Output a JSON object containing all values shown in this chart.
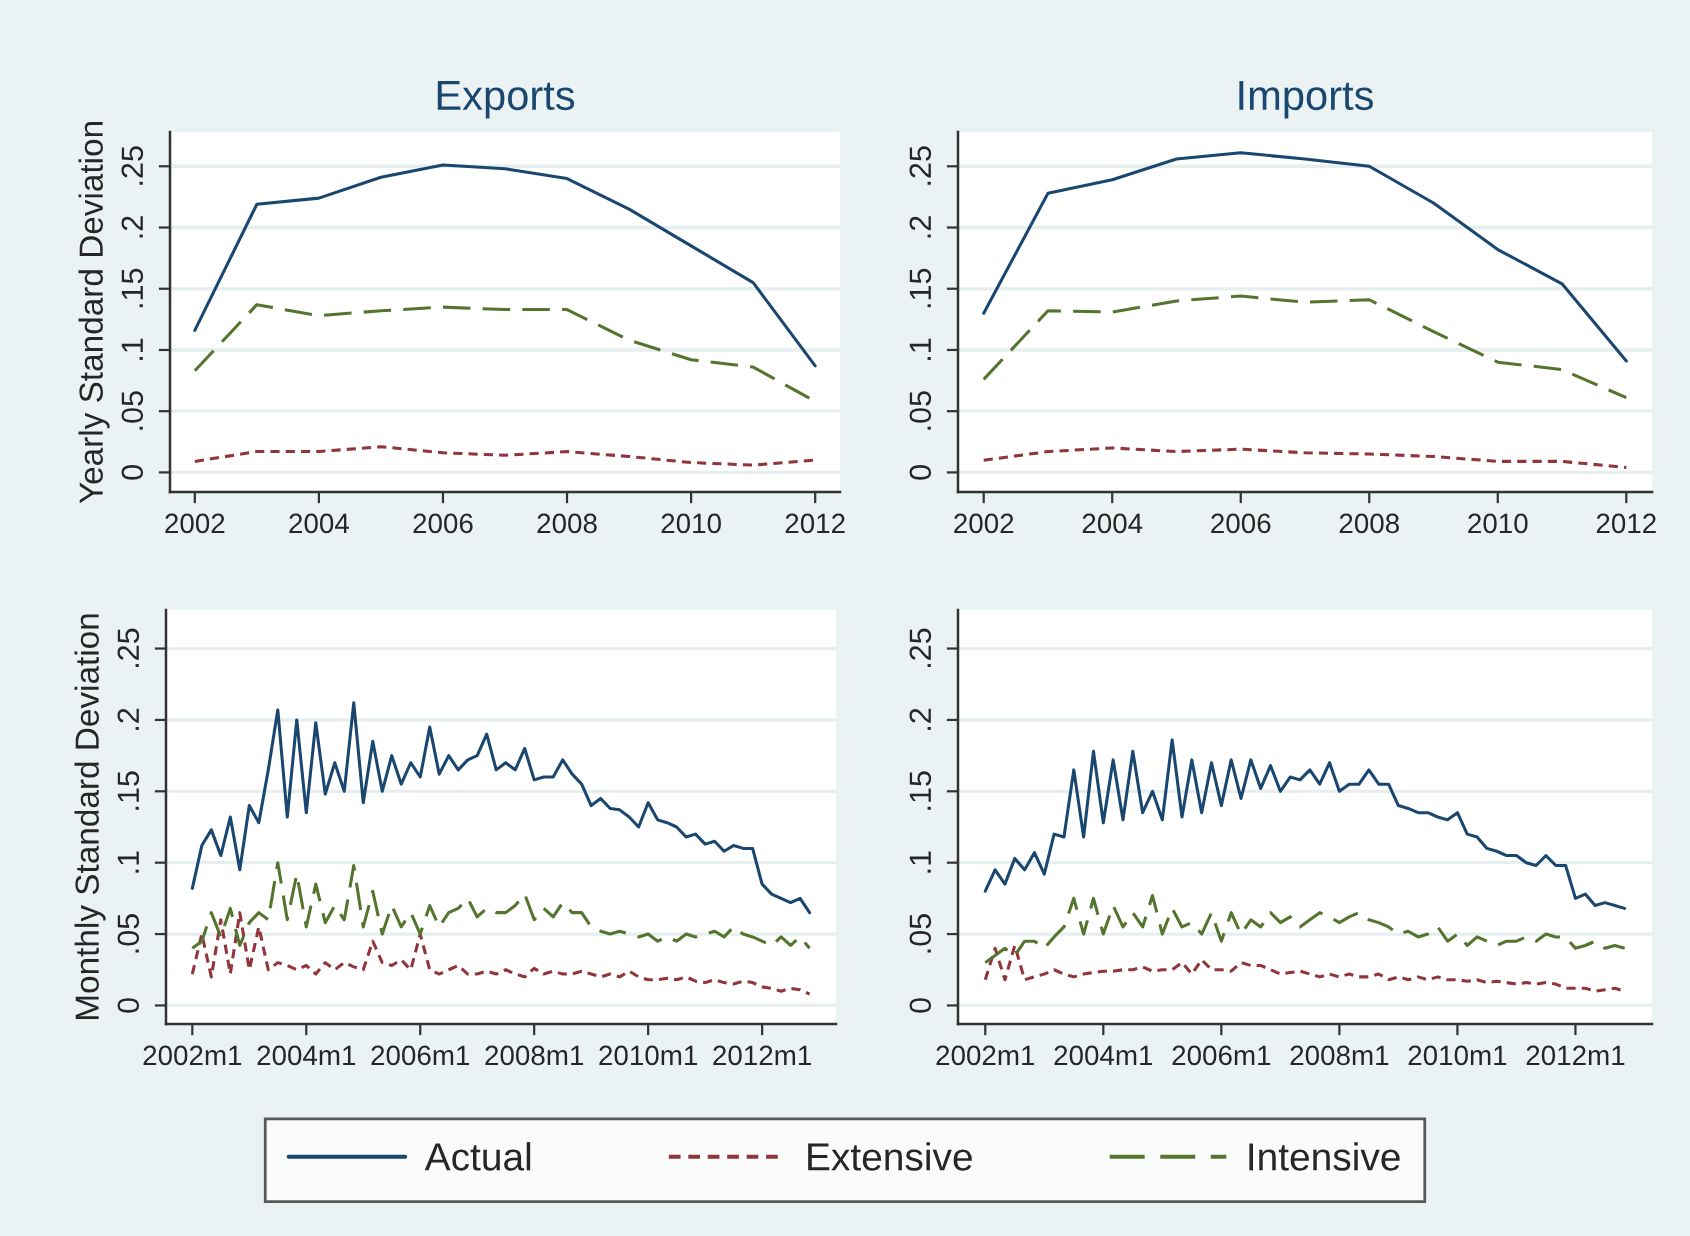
{
  "chart_data": [
    {
      "type": "line",
      "title": "Exports",
      "ylabel": "Yearly Standard Deviation",
      "x": [
        2002,
        2003,
        2004,
        2005,
        2006,
        2007,
        2008,
        2009,
        2010,
        2011,
        2012
      ],
      "xlim": [
        2001.6,
        2012.4
      ],
      "xticks": [
        2002,
        2004,
        2006,
        2008,
        2010,
        2012
      ],
      "ylim": [
        -0.016,
        0.278
      ],
      "yticks": [
        0,
        {
          "value": 0.05,
          "label": ".05"
        },
        {
          "value": 0.1,
          "label": ".1"
        },
        {
          "value": 0.15,
          "label": ".15"
        },
        {
          "value": 0.2,
          "label": ".2"
        },
        {
          "value": 0.25,
          "label": ".25"
        }
      ],
      "grid": "y",
      "series": [
        {
          "color": "#1a476f",
          "line_style": "solid",
          "values": [
            0.116,
            0.219,
            0.224,
            0.241,
            0.251,
            0.248,
            0.24,
            0.215,
            0.185,
            0.155,
            0.087
          ]
        },
        {
          "color": "#90353b",
          "line_style": "dotted",
          "values": [
            0.009,
            0.017,
            0.017,
            0.021,
            0.016,
            0.014,
            0.017,
            0.013,
            0.008,
            0.006,
            0.01
          ]
        },
        {
          "color": "#55752f",
          "line_style": "dashed",
          "values": [
            0.083,
            0.137,
            0.128,
            0.132,
            0.135,
            0.133,
            0.133,
            0.108,
            0.092,
            0.086,
            0.058
          ]
        }
      ]
    },
    {
      "type": "line",
      "title": "Imports",
      "x": [
        2002,
        2003,
        2004,
        2005,
        2006,
        2007,
        2008,
        2009,
        2010,
        2011,
        2012
      ],
      "xlim": [
        2001.6,
        2012.4
      ],
      "xticks": [
        2002,
        2004,
        2006,
        2008,
        2010,
        2012
      ],
      "ylim": [
        -0.016,
        0.278
      ],
      "yticks": [
        0,
        {
          "value": 0.05,
          "label": ".05"
        },
        {
          "value": 0.1,
          "label": ".1"
        },
        {
          "value": 0.15,
          "label": ".15"
        },
        {
          "value": 0.2,
          "label": ".2"
        },
        {
          "value": 0.25,
          "label": ".25"
        }
      ],
      "grid": "y",
      "series": [
        {
          "color": "#1a476f",
          "line_style": "solid",
          "values": [
            0.13,
            0.228,
            0.239,
            0.256,
            0.261,
            0.256,
            0.25,
            0.22,
            0.182,
            0.154,
            0.091
          ]
        },
        {
          "color": "#90353b",
          "line_style": "dotted",
          "values": [
            0.01,
            0.017,
            0.02,
            0.017,
            0.019,
            0.016,
            0.015,
            0.013,
            0.009,
            0.009,
            0.004
          ]
        },
        {
          "color": "#55752f",
          "line_style": "dashed",
          "values": [
            0.076,
            0.132,
            0.131,
            0.14,
            0.144,
            0.139,
            0.141,
            0.115,
            0.09,
            0.084,
            0.061
          ]
        }
      ]
    },
    {
      "type": "line",
      "ylabel": "Monthly Standard Deviation",
      "categories": [
        "2002m1",
        null,
        null,
        null,
        null,
        null,
        null,
        null,
        null,
        null,
        null,
        null,
        "2004m1",
        null,
        null,
        null,
        null,
        null,
        null,
        null,
        null,
        null,
        null,
        null,
        "2006m1",
        null,
        null,
        null,
        null,
        null,
        null,
        null,
        null,
        null,
        null,
        null,
        "2008m1",
        null,
        null,
        null,
        null,
        null,
        null,
        null,
        null,
        null,
        null,
        null,
        "2010m1",
        null,
        null,
        null,
        null,
        null,
        null,
        null,
        null,
        null,
        null,
        null,
        "2012m1",
        null,
        null,
        null,
        null,
        null
      ],
      "ylim": [
        -0.013,
        0.277
      ],
      "yticks": [
        0,
        {
          "value": 0.05,
          "label": ".05"
        },
        {
          "value": 0.1,
          "label": ".1"
        },
        {
          "value": 0.15,
          "label": ".15"
        },
        {
          "value": 0.2,
          "label": ".2"
        },
        {
          "value": 0.25,
          "label": ".25"
        }
      ],
      "grid": "y",
      "series": [
        {
          "color": "#1a476f",
          "line_style": "solid",
          "values": [
            0.082,
            0.112,
            0.123,
            0.105,
            0.132,
            0.095,
            0.14,
            0.128,
            0.165,
            0.207,
            0.132,
            0.2,
            0.135,
            0.198,
            0.148,
            0.17,
            0.15,
            0.212,
            0.142,
            0.185,
            0.15,
            0.175,
            0.155,
            0.17,
            0.16,
            0.195,
            0.162,
            0.175,
            0.165,
            0.172,
            0.175,
            0.19,
            0.165,
            0.17,
            0.165,
            0.18,
            0.158,
            0.16,
            0.16,
            0.172,
            0.162,
            0.155,
            0.14,
            0.145,
            0.138,
            0.137,
            0.132,
            0.125,
            0.142,
            0.13,
            0.128,
            0.125,
            0.118,
            0.12,
            0.113,
            0.115,
            0.108,
            0.112,
            0.11,
            0.11,
            0.085,
            0.078,
            0.075,
            0.072,
            0.075,
            0.065
          ]
        },
        {
          "color": "#90353b",
          "line_style": "dotted",
          "values": [
            0.022,
            0.05,
            0.02,
            0.06,
            0.022,
            0.065,
            0.025,
            0.055,
            0.025,
            0.03,
            0.028,
            0.025,
            0.028,
            0.022,
            0.03,
            0.025,
            0.03,
            0.027,
            0.025,
            0.045,
            0.03,
            0.028,
            0.032,
            0.025,
            0.05,
            0.025,
            0.022,
            0.025,
            0.028,
            0.022,
            0.022,
            0.024,
            0.022,
            0.025,
            0.022,
            0.02,
            0.026,
            0.022,
            0.024,
            0.022,
            0.022,
            0.024,
            0.022,
            0.02,
            0.022,
            0.02,
            0.024,
            0.02,
            0.018,
            0.018,
            0.019,
            0.018,
            0.02,
            0.017,
            0.016,
            0.018,
            0.016,
            0.015,
            0.017,
            0.016,
            0.013,
            0.012,
            0.01,
            0.012,
            0.011,
            0.008
          ]
        },
        {
          "color": "#55752f",
          "line_style": "dashed",
          "values": [
            0.04,
            0.045,
            0.065,
            0.048,
            0.068,
            0.042,
            0.058,
            0.065,
            0.06,
            0.1,
            0.06,
            0.092,
            0.055,
            0.085,
            0.058,
            0.07,
            0.06,
            0.098,
            0.055,
            0.08,
            0.05,
            0.07,
            0.055,
            0.065,
            0.05,
            0.07,
            0.055,
            0.065,
            0.068,
            0.075,
            0.062,
            0.068,
            0.065,
            0.065,
            0.07,
            0.078,
            0.06,
            0.068,
            0.062,
            0.072,
            0.065,
            0.065,
            0.055,
            0.052,
            0.05,
            0.052,
            0.05,
            0.048,
            0.05,
            0.045,
            0.048,
            0.045,
            0.05,
            0.048,
            0.05,
            0.052,
            0.048,
            0.055,
            0.05,
            0.048,
            0.045,
            0.042,
            0.048,
            0.042,
            0.048,
            0.04
          ]
        }
      ]
    },
    {
      "type": "line",
      "legend": "bottom",
      "categories": [
        "2002m1",
        null,
        null,
        null,
        null,
        null,
        null,
        null,
        null,
        null,
        null,
        null,
        "2004m1",
        null,
        null,
        null,
        null,
        null,
        null,
        null,
        null,
        null,
        null,
        null,
        "2006m1",
        null,
        null,
        null,
        null,
        null,
        null,
        null,
        null,
        null,
        null,
        null,
        "2008m1",
        null,
        null,
        null,
        null,
        null,
        null,
        null,
        null,
        null,
        null,
        null,
        "2010m1",
        null,
        null,
        null,
        null,
        null,
        null,
        null,
        null,
        null,
        null,
        null,
        "2012m1",
        null,
        null,
        null,
        null,
        null
      ],
      "ylim": [
        -0.013,
        0.277
      ],
      "yticks": [
        0,
        {
          "value": 0.05,
          "label": ".05"
        },
        {
          "value": 0.1,
          "label": ".1"
        },
        {
          "value": 0.15,
          "label": ".15"
        },
        {
          "value": 0.2,
          "label": ".2"
        },
        {
          "value": 0.25,
          "label": ".25"
        }
      ],
      "grid": "y",
      "series": [
        {
          "name": "Actual",
          "color": "#1a476f",
          "line_style": "solid",
          "values": [
            0.08,
            0.095,
            0.085,
            0.103,
            0.095,
            0.107,
            0.092,
            0.12,
            0.118,
            0.165,
            0.118,
            0.178,
            0.128,
            0.172,
            0.13,
            0.178,
            0.135,
            0.15,
            0.13,
            0.186,
            0.132,
            0.172,
            0.135,
            0.17,
            0.14,
            0.172,
            0.145,
            0.172,
            0.152,
            0.168,
            0.15,
            0.16,
            0.158,
            0.165,
            0.155,
            0.17,
            0.15,
            0.155,
            0.155,
            0.165,
            0.155,
            0.155,
            0.14,
            0.138,
            0.135,
            0.135,
            0.132,
            0.13,
            0.135,
            0.12,
            0.118,
            0.11,
            0.108,
            0.105,
            0.105,
            0.1,
            0.098,
            0.105,
            0.098,
            0.098,
            0.075,
            0.078,
            0.07,
            0.072,
            0.07,
            0.068
          ]
        },
        {
          "name": "Extensive",
          "color": "#90353b",
          "line_style": "dotted",
          "values": [
            0.018,
            0.04,
            0.018,
            0.042,
            0.018,
            0.02,
            0.022,
            0.025,
            0.022,
            0.02,
            0.022,
            0.023,
            0.024,
            0.024,
            0.025,
            0.025,
            0.027,
            0.024,
            0.025,
            0.025,
            0.03,
            0.022,
            0.032,
            0.025,
            0.025,
            0.024,
            0.03,
            0.028,
            0.028,
            0.025,
            0.022,
            0.023,
            0.024,
            0.022,
            0.02,
            0.022,
            0.02,
            0.022,
            0.02,
            0.02,
            0.022,
            0.018,
            0.02,
            0.018,
            0.02,
            0.018,
            0.02,
            0.018,
            0.018,
            0.017,
            0.018,
            0.016,
            0.017,
            0.016,
            0.015,
            0.016,
            0.015,
            0.016,
            0.015,
            0.012,
            0.012,
            0.012,
            0.01,
            0.011,
            0.012,
            0.01
          ]
        },
        {
          "name": "Intensive",
          "color": "#55752f",
          "line_style": "dashed",
          "values": [
            0.03,
            0.035,
            0.04,
            0.035,
            0.045,
            0.045,
            0.04,
            0.048,
            0.055,
            0.075,
            0.05,
            0.075,
            0.05,
            0.07,
            0.055,
            0.065,
            0.055,
            0.077,
            0.05,
            0.068,
            0.055,
            0.058,
            0.05,
            0.065,
            0.045,
            0.065,
            0.05,
            0.06,
            0.055,
            0.065,
            0.058,
            0.062,
            0.055,
            0.06,
            0.065,
            0.062,
            0.058,
            0.062,
            0.065,
            0.06,
            0.058,
            0.055,
            0.05,
            0.052,
            0.048,
            0.05,
            0.055,
            0.045,
            0.05,
            0.042,
            0.048,
            0.045,
            0.042,
            0.045,
            0.045,
            0.048,
            0.045,
            0.05,
            0.048,
            0.048,
            0.04,
            0.042,
            0.045,
            0.04,
            0.042,
            0.04
          ]
        }
      ]
    }
  ]
}
